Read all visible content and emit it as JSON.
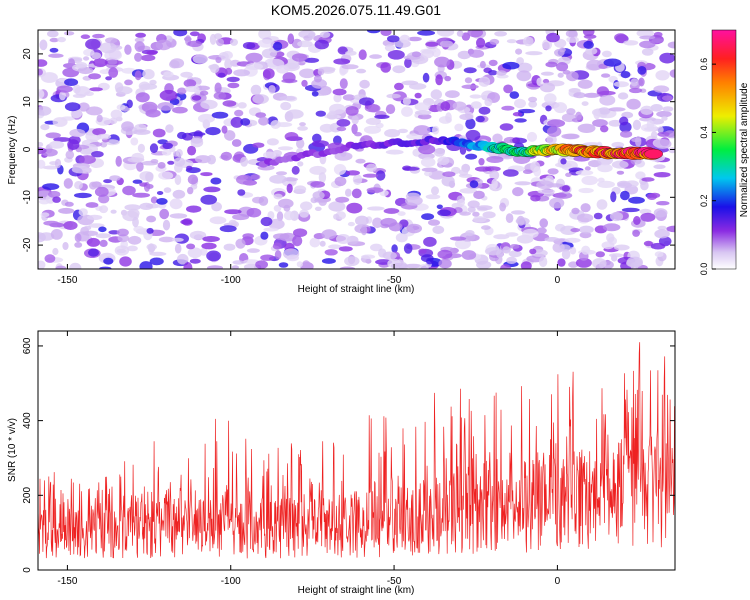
{
  "title": "KOM5.2026.075.11.49.G01",
  "colors": {
    "line_series": "#ee2222",
    "frame": "#000000",
    "heatmap_low": "#ffffff",
    "heatmap_mid": "#8a2be2",
    "heatmap_high": "#ff3030"
  },
  "chart_data": [
    {
      "type": "heatmap",
      "title": "KOM5.2026.075.11.49.G01",
      "xlabel": "Height of straight line (km)",
      "ylabel": "Frequency (Hz)",
      "xlim": [
        -159,
        36
      ],
      "ylim": [
        -25,
        25
      ],
      "xticks": [
        -150,
        -100,
        -50,
        0
      ],
      "yticks": [
        -20,
        -10,
        0,
        10,
        20
      ],
      "colorbar": {
        "label": "Normalized spectral amplitude",
        "range": [
          0,
          0.7
        ],
        "ticks": [
          0.0,
          0.2,
          0.4,
          0.6
        ],
        "colormap": "rainbow (white-purple-blue-cyan-green-yellow-red-magenta)"
      },
      "ridge": {
        "description": "signal ridge near 0 Hz strengthening toward positive heights",
        "points": [
          {
            "x": -90,
            "y": -3,
            "amp": 0.1
          },
          {
            "x": -60,
            "y": 1,
            "amp": 0.12
          },
          {
            "x": -35,
            "y": 2,
            "amp": 0.15
          },
          {
            "x": -20,
            "y": 0.5,
            "amp": 0.3
          },
          {
            "x": -10,
            "y": -0.5,
            "amp": 0.35
          },
          {
            "x": 0,
            "y": 0,
            "amp": 0.5
          },
          {
            "x": 10,
            "y": -0.5,
            "amp": 0.6
          },
          {
            "x": 20,
            "y": -0.8,
            "amp": 0.62
          },
          {
            "x": 30,
            "y": -0.8,
            "amp": 0.65
          }
        ]
      }
    },
    {
      "type": "line",
      "xlabel": "Height of straight line (km)",
      "ylabel": "SNR (10 * v/v)",
      "xlim": [
        -159,
        36
      ],
      "ylim": [
        0,
        640
      ],
      "xticks": [
        -150,
        -100,
        -50,
        0
      ],
      "yticks": [
        0,
        200,
        400,
        600
      ],
      "series": [
        {
          "x": [
            -155,
            -145,
            -135,
            -125,
            -115,
            -105,
            -95,
            -85,
            -75,
            -65,
            -55,
            -45,
            -35,
            -25,
            -15,
            -5,
            5,
            15,
            25,
            35
          ],
          "values": [
            120,
            115,
            118,
            125,
            120,
            118,
            122,
            125,
            128,
            130,
            135,
            140,
            165,
            175,
            180,
            190,
            200,
            215,
            230,
            235
          ],
          "peaks": [
            265,
            245,
            275,
            365,
            300,
            435,
            400,
            345,
            330,
            395,
            430,
            435,
            540,
            555,
            500,
            515,
            535,
            600,
            640,
            570
          ]
        }
      ]
    }
  ]
}
